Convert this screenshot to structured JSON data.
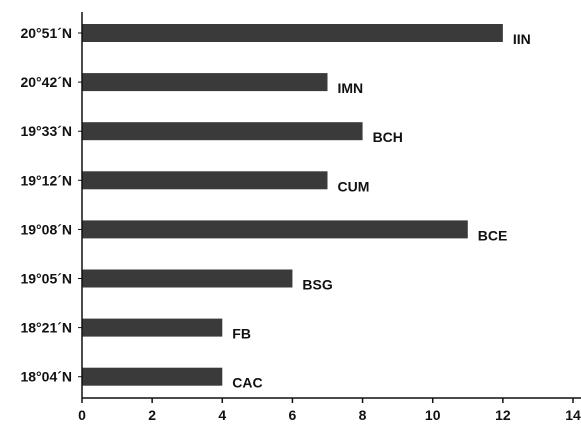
{
  "chart_data": {
    "type": "bar",
    "orientation": "horizontal",
    "title": "",
    "xlabel": "",
    "ylabel": "",
    "categories": [
      "20°51´N",
      "20°42´N",
      "19°33´N",
      "19°12´N",
      "19°08´N",
      "19°05´N",
      "18°21´N",
      "18°04´N"
    ],
    "values": [
      12,
      7,
      8,
      7,
      11,
      6,
      4,
      4
    ],
    "bar_labels": [
      "IIN",
      "IMN",
      "BCH",
      "CUM",
      "BCE",
      "BSG",
      "FB",
      "CAC"
    ],
    "xlim": [
      0,
      14
    ],
    "xticks": [
      "0",
      "2",
      "4",
      "6",
      "8",
      "10",
      "12",
      "14"
    ],
    "grid": false,
    "legend": "none",
    "bar_color": "#3a3a3a",
    "axis_color": "#111111"
  }
}
